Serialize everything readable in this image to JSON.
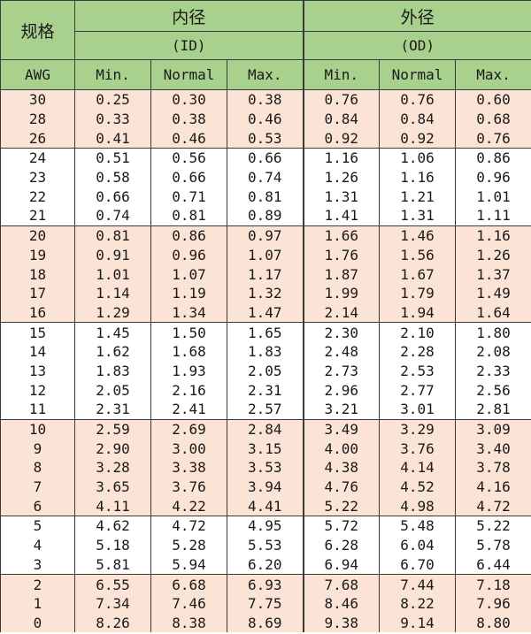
{
  "header": {
    "spec_label": "规格",
    "id_title": "内径",
    "id_sub": "(ID)",
    "od_title": "外径",
    "od_sub": "(OD)",
    "awg": "AWG",
    "columns": [
      "Min.",
      "Normal",
      "Max.",
      "Min.",
      "Normal",
      "Max."
    ]
  },
  "rows": [
    {
      "awg": "30",
      "id_min": "0.25",
      "id_nor": "0.30",
      "id_max": "0.38",
      "od_min": "0.76",
      "od_nor": "0.76",
      "od_max": "0.60"
    },
    {
      "awg": "28",
      "id_min": "0.33",
      "id_nor": "0.38",
      "id_max": "0.46",
      "od_min": "0.84",
      "od_nor": "0.84",
      "od_max": "0.68"
    },
    {
      "awg": "26",
      "id_min": "0.41",
      "id_nor": "0.46",
      "id_max": "0.53",
      "od_min": "0.92",
      "od_nor": "0.92",
      "od_max": "0.76"
    },
    {
      "awg": "24",
      "id_min": "0.51",
      "id_nor": "0.56",
      "id_max": "0.66",
      "od_min": "1.16",
      "od_nor": "1.06",
      "od_max": "0.86"
    },
    {
      "awg": "23",
      "id_min": "0.58",
      "id_nor": "0.66",
      "id_max": "0.74",
      "od_min": "1.26",
      "od_nor": "1.16",
      "od_max": "0.96"
    },
    {
      "awg": "22",
      "id_min": "0.66",
      "id_nor": "0.71",
      "id_max": "0.81",
      "od_min": "1.31",
      "od_nor": "1.21",
      "od_max": "1.01"
    },
    {
      "awg": "21",
      "id_min": "0.74",
      "id_nor": "0.81",
      "id_max": "0.89",
      "od_min": "1.41",
      "od_nor": "1.31",
      "od_max": "1.11"
    },
    {
      "awg": "20",
      "id_min": "0.81",
      "id_nor": "0.86",
      "id_max": "0.97",
      "od_min": "1.66",
      "od_nor": "1.46",
      "od_max": "1.16"
    },
    {
      "awg": "19",
      "id_min": "0.91",
      "id_nor": "0.96",
      "id_max": "1.07",
      "od_min": "1.76",
      "od_nor": "1.56",
      "od_max": "1.26"
    },
    {
      "awg": "18",
      "id_min": "1.01",
      "id_nor": "1.07",
      "id_max": "1.17",
      "od_min": "1.87",
      "od_nor": "1.67",
      "od_max": "1.37"
    },
    {
      "awg": "17",
      "id_min": "1.14",
      "id_nor": "1.19",
      "id_max": "1.32",
      "od_min": "1.99",
      "od_nor": "1.79",
      "od_max": "1.49"
    },
    {
      "awg": "16",
      "id_min": "1.29",
      "id_nor": "1.34",
      "id_max": "1.47",
      "od_min": "2.14",
      "od_nor": "1.94",
      "od_max": "1.64"
    },
    {
      "awg": "15",
      "id_min": "1.45",
      "id_nor": "1.50",
      "id_max": "1.65",
      "od_min": "2.30",
      "od_nor": "2.10",
      "od_max": "1.80"
    },
    {
      "awg": "14",
      "id_min": "1.62",
      "id_nor": "1.68",
      "id_max": "1.83",
      "od_min": "2.48",
      "od_nor": "2.28",
      "od_max": "2.08"
    },
    {
      "awg": "13",
      "id_min": "1.83",
      "id_nor": "1.93",
      "id_max": "2.05",
      "od_min": "2.73",
      "od_nor": "2.53",
      "od_max": "2.33"
    },
    {
      "awg": "12",
      "id_min": "2.05",
      "id_nor": "2.16",
      "id_max": "2.31",
      "od_min": "2.96",
      "od_nor": "2.77",
      "od_max": "2.56"
    },
    {
      "awg": "11",
      "id_min": "2.31",
      "id_nor": "2.41",
      "id_max": "2.57",
      "od_min": "3.21",
      "od_nor": "3.01",
      "od_max": "2.81"
    },
    {
      "awg": "10",
      "id_min": "2.59",
      "id_nor": "2.69",
      "id_max": "2.84",
      "od_min": "3.49",
      "od_nor": "3.29",
      "od_max": "3.09"
    },
    {
      "awg": "9",
      "id_min": "2.90",
      "id_nor": "3.00",
      "id_max": "3.15",
      "od_min": "4.00",
      "od_nor": "3.76",
      "od_max": "3.40"
    },
    {
      "awg": "8",
      "id_min": "3.28",
      "id_nor": "3.38",
      "id_max": "3.53",
      "od_min": "4.38",
      "od_nor": "4.14",
      "od_max": "3.78"
    },
    {
      "awg": "7",
      "id_min": "3.65",
      "id_nor": "3.76",
      "id_max": "3.94",
      "od_min": "4.76",
      "od_nor": "4.52",
      "od_max": "4.16"
    },
    {
      "awg": "6",
      "id_min": "4.11",
      "id_nor": "4.22",
      "id_max": "4.41",
      "od_min": "5.22",
      "od_nor": "4.98",
      "od_max": "4.72"
    },
    {
      "awg": "5",
      "id_min": "4.62",
      "id_nor": "4.72",
      "id_max": "4.95",
      "od_min": "5.72",
      "od_nor": "5.48",
      "od_max": "5.22"
    },
    {
      "awg": "4",
      "id_min": "5.18",
      "id_nor": "5.28",
      "id_max": "5.53",
      "od_min": "6.28",
      "od_nor": "6.04",
      "od_max": "5.78"
    },
    {
      "awg": "3",
      "id_min": "5.81",
      "id_nor": "5.94",
      "id_max": "6.20",
      "od_min": "6.94",
      "od_nor": "6.70",
      "od_max": "6.44"
    },
    {
      "awg": "2",
      "id_min": "6.55",
      "id_nor": "6.68",
      "id_max": "6.93",
      "od_min": "7.68",
      "od_nor": "7.44",
      "od_max": "7.18"
    },
    {
      "awg": "1",
      "id_min": "7.34",
      "id_nor": "7.46",
      "id_max": "7.75",
      "od_min": "8.46",
      "od_nor": "8.22",
      "od_max": "7.96"
    },
    {
      "awg": "0",
      "id_min": "8.26",
      "id_nor": "8.38",
      "id_max": "8.69",
      "od_min": "9.38",
      "od_nor": "9.14",
      "od_max": "8.80"
    }
  ],
  "colors": {
    "header_bg": "#a9d18e",
    "shade_bg": "#fbe4d5",
    "plain_bg": "#ffffff",
    "border": "#3a3a3a"
  }
}
